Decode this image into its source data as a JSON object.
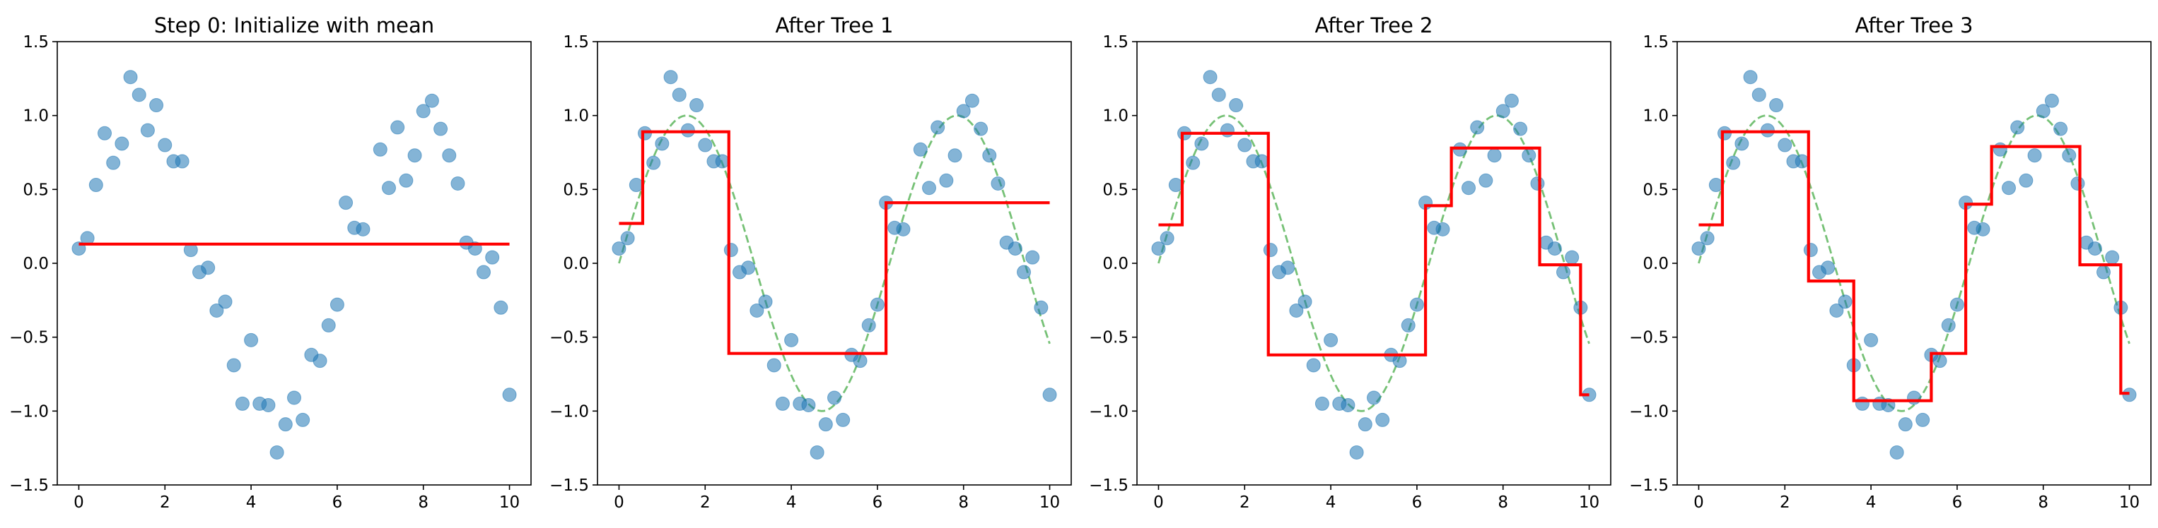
{
  "chart_data": [
    {
      "type": "scatter",
      "title": "Step 0: Initialize with mean",
      "xlim": [
        -0.5,
        10.5
      ],
      "ylim": [
        -1.5,
        1.5
      ],
      "xticks": [
        "0",
        "2",
        "4",
        "6",
        "8",
        "10"
      ],
      "yticks": [
        "−1.5",
        "−1.0",
        "−0.5",
        "0.0",
        "0.5",
        "1.0",
        "1.5"
      ],
      "grid": false,
      "series": [
        {
          "kind": "points"
        },
        {
          "kind": "prediction",
          "x": [
            0,
            10
          ],
          "y": [
            0.13,
            0.13
          ]
        }
      ]
    },
    {
      "type": "scatter",
      "title": "After Tree 1",
      "xlim": [
        -0.5,
        10.5
      ],
      "ylim": [
        -1.5,
        1.5
      ],
      "xticks": [
        "0",
        "2",
        "4",
        "6",
        "8",
        "10"
      ],
      "yticks": [
        "−1.5",
        "−1.0",
        "−0.5",
        "0.0",
        "0.5",
        "1.0",
        "1.5"
      ],
      "grid": false,
      "series": [
        {
          "kind": "points"
        },
        {
          "kind": "true-function",
          "function": "sin(x)"
        },
        {
          "kind": "prediction",
          "x": [
            0,
            0.55,
            0.55,
            2.55,
            2.55,
            6.2,
            6.2,
            10
          ],
          "y": [
            0.27,
            0.27,
            0.89,
            0.89,
            -0.61,
            -0.61,
            0.41,
            0.41
          ]
        }
      ]
    },
    {
      "type": "scatter",
      "title": "After Tree 2",
      "xlim": [
        -0.5,
        10.5
      ],
      "ylim": [
        -1.5,
        1.5
      ],
      "xticks": [
        "0",
        "2",
        "4",
        "6",
        "8",
        "10"
      ],
      "yticks": [
        "−1.5",
        "−1.0",
        "−0.5",
        "0.0",
        "0.5",
        "1.0",
        "1.5"
      ],
      "grid": false,
      "series": [
        {
          "kind": "points"
        },
        {
          "kind": "true-function",
          "function": "sin(x)"
        },
        {
          "kind": "prediction",
          "x": [
            0,
            0.55,
            0.55,
            2.55,
            2.55,
            6.2,
            6.2,
            6.8,
            6.8,
            8.85,
            8.85,
            9.8,
            9.8,
            10
          ],
          "y": [
            0.26,
            0.26,
            0.88,
            0.88,
            -0.62,
            -0.62,
            0.39,
            0.39,
            0.78,
            0.78,
            -0.01,
            -0.01,
            -0.89,
            -0.89
          ]
        }
      ]
    },
    {
      "type": "scatter",
      "title": "After Tree 3",
      "xlim": [
        -0.5,
        10.5
      ],
      "ylim": [
        -1.5,
        1.5
      ],
      "xticks": [
        "0",
        "2",
        "4",
        "6",
        "8",
        "10"
      ],
      "yticks": [
        "−1.5",
        "−1.0",
        "−0.5",
        "0.0",
        "0.5",
        "1.0",
        "1.5"
      ],
      "grid": false,
      "series": [
        {
          "kind": "points"
        },
        {
          "kind": "true-function",
          "function": "sin(x)"
        },
        {
          "kind": "prediction",
          "x": [
            0,
            0.55,
            0.55,
            2.55,
            2.55,
            3.6,
            3.6,
            5.4,
            5.4,
            6.2,
            6.2,
            6.8,
            6.8,
            8.85,
            8.85,
            9.8,
            9.8,
            10
          ],
          "y": [
            0.26,
            0.26,
            0.89,
            0.89,
            -0.12,
            -0.12,
            -0.93,
            -0.93,
            -0.61,
            -0.61,
            0.4,
            0.4,
            0.79,
            0.79,
            -0.01,
            -0.01,
            -0.88,
            -0.88
          ]
        }
      ]
    }
  ],
  "shared_points": {
    "x": [
      0.0,
      0.2,
      0.4,
      0.6,
      0.8,
      1.0,
      1.2,
      1.4,
      1.6,
      1.8,
      2.0,
      2.2,
      2.4,
      2.6,
      2.8,
      3.0,
      3.2,
      3.4,
      3.6,
      3.8,
      4.0,
      4.2,
      4.4,
      4.6,
      4.8,
      5.0,
      5.2,
      5.4,
      5.6,
      5.8,
      6.0,
      6.2,
      6.4,
      6.6,
      7.0,
      7.2,
      7.4,
      7.6,
      7.8,
      8.0,
      8.2,
      8.4,
      8.6,
      8.8,
      9.0,
      9.2,
      9.4,
      9.6,
      9.8,
      10.0
    ],
    "y": [
      0.1,
      0.17,
      0.53,
      0.88,
      0.68,
      0.81,
      1.26,
      1.14,
      0.9,
      1.07,
      0.8,
      0.69,
      0.69,
      0.09,
      -0.06,
      -0.03,
      -0.32,
      -0.26,
      -0.69,
      -0.95,
      -0.52,
      -0.95,
      -0.96,
      -1.28,
      -1.09,
      -0.91,
      -1.06,
      -0.62,
      -0.66,
      -0.42,
      -0.28,
      0.41,
      0.24,
      0.23,
      0.77,
      0.51,
      0.92,
      0.56,
      0.73,
      1.03,
      1.1,
      0.91,
      0.73,
      0.54,
      0.14,
      0.1,
      -0.06,
      0.04,
      -0.3,
      -0.89
    ]
  },
  "colors": {
    "points": "#1f77b4",
    "prediction": "#ff0000",
    "true_function": "#2ca02c"
  }
}
